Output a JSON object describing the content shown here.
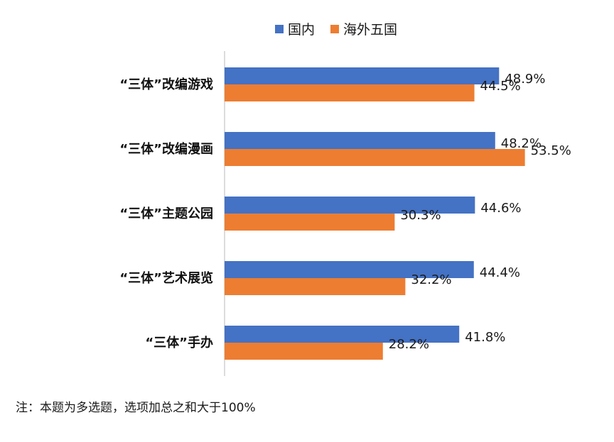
{
  "chart_data": {
    "type": "bar",
    "orientation": "horizontal",
    "categories": [
      "“三体”改编游戏",
      "“三体”改编漫画",
      "“三体”主题公园",
      "“三体”艺术展览",
      "“三体”手办"
    ],
    "series": [
      {
        "name": "国内",
        "values": [
          48.9,
          48.2,
          44.6,
          44.4,
          41.8
        ],
        "labels": [
          "48.9%",
          "48.2%",
          "44.6%",
          "44.4%",
          "41.8%"
        ],
        "color": "#4472C4"
      },
      {
        "name": "海外五国",
        "values": [
          44.5,
          53.5,
          30.3,
          32.2,
          28.2
        ],
        "labels": [
          "44.5%",
          "53.5%",
          "30.3%",
          "32.2%",
          "28.2%"
        ],
        "color": "#ED7D31"
      }
    ],
    "xlim": [
      0,
      60
    ],
    "legend": "top-center",
    "grid": false
  },
  "note": "注：本题为多选题，选项加总之和大于100%"
}
